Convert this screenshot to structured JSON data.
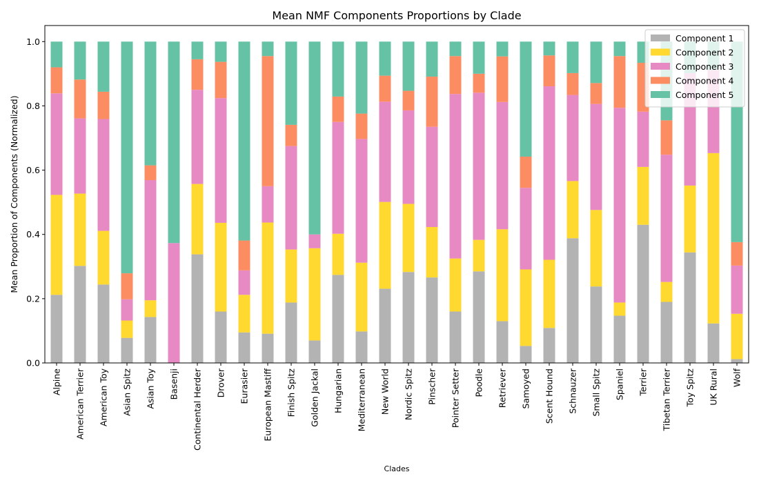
{
  "chart_data": {
    "type": "bar",
    "stacked": true,
    "title": "Mean NMF Components Proportions by Clade",
    "xlabel": "Clades",
    "ylabel": "Mean Proportion of Components (Normalized)",
    "ylim": [
      0,
      1.05
    ],
    "yticks": [
      "0.0",
      "0.2",
      "0.4",
      "0.6",
      "0.8",
      "1.0"
    ],
    "legend_position": "top-right",
    "categories": [
      "Alpine",
      "American Terrier",
      "American Toy",
      "Asian Spitz",
      "Asian Toy",
      "Basenji",
      "Continental Herder",
      "Drover",
      "Eurasier",
      "European Mastiff",
      "Finish Spitz",
      "Golden Jackal",
      "Hungarian",
      "Mediterranean",
      "New World",
      "Nordic Spitz",
      "Pinscher",
      "Pointer Setter",
      "Poodle",
      "Retriever",
      "Samoyed",
      "Scent Hound",
      "Schnauzer",
      "Small Spitz",
      "Spaniel",
      "Terrier",
      "Tibetan Terrier",
      "Toy Spitz",
      "UK Rural",
      "Wolf"
    ],
    "series": [
      {
        "name": "Component 1",
        "color": "#b3b3b3",
        "values": [
          0.212,
          0.302,
          0.244,
          0.078,
          0.143,
          0.0,
          0.338,
          0.16,
          0.095,
          0.091,
          0.188,
          0.07,
          0.274,
          0.098,
          0.231,
          0.283,
          0.266,
          0.16,
          0.285,
          0.13,
          0.053,
          0.109,
          0.388,
          0.238,
          0.147,
          0.43,
          0.19,
          0.344,
          0.123,
          0.012
        ]
      },
      {
        "name": "Component 2",
        "color": "#ffd92f",
        "values": [
          0.311,
          0.225,
          0.167,
          0.054,
          0.052,
          0.0,
          0.219,
          0.276,
          0.117,
          0.346,
          0.165,
          0.287,
          0.128,
          0.214,
          0.27,
          0.212,
          0.157,
          0.165,
          0.098,
          0.286,
          0.238,
          0.212,
          0.178,
          0.238,
          0.041,
          0.18,
          0.062,
          0.208,
          0.53,
          0.141
        ]
      },
      {
        "name": "Component 3",
        "color": "#e78ac3",
        "values": [
          0.316,
          0.234,
          0.348,
          0.066,
          0.374,
          0.373,
          0.293,
          0.388,
          0.076,
          0.113,
          0.322,
          0.043,
          0.348,
          0.385,
          0.312,
          0.291,
          0.312,
          0.512,
          0.458,
          0.396,
          0.254,
          0.54,
          0.268,
          0.33,
          0.606,
          0.172,
          0.396,
          0.35,
          0.259,
          0.15
        ]
      },
      {
        "name": "Component 4",
        "color": "#fc8d62",
        "values": [
          0.081,
          0.121,
          0.085,
          0.081,
          0.046,
          0.0,
          0.095,
          0.113,
          0.093,
          0.405,
          0.066,
          0.0,
          0.079,
          0.079,
          0.081,
          0.061,
          0.156,
          0.118,
          0.059,
          0.142,
          0.097,
          0.096,
          0.068,
          0.065,
          0.161,
          0.152,
          0.107,
          0.0,
          0.0,
          0.073
        ]
      },
      {
        "name": "Component 5",
        "color": "#66c2a5",
        "values": [
          0.08,
          0.118,
          0.156,
          0.721,
          0.385,
          0.627,
          0.055,
          0.063,
          0.619,
          0.045,
          0.259,
          0.6,
          0.171,
          0.224,
          0.106,
          0.153,
          0.109,
          0.045,
          0.1,
          0.046,
          0.358,
          0.043,
          0.098,
          0.129,
          0.045,
          0.066,
          0.245,
          0.098,
          0.088,
          0.624
        ]
      }
    ]
  }
}
